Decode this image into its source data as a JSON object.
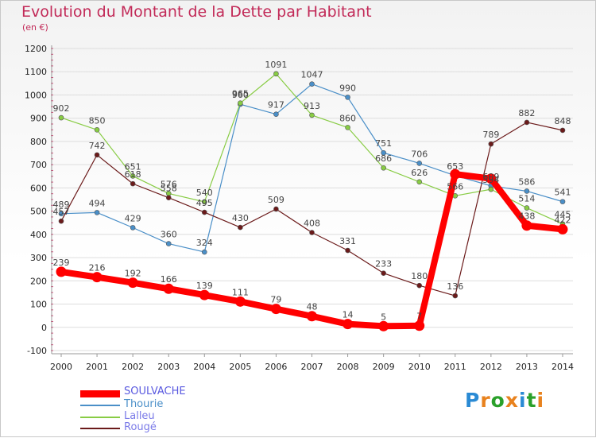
{
  "title": "Evolution du Montant de la Dette par Habitant",
  "unit": "(en €)",
  "logo_text": "Proxiti",
  "chart_data": {
    "type": "line",
    "title": "Evolution du Montant de la Dette par Habitant",
    "ylabel": "(en €)",
    "xlabel": "",
    "x": [
      "2000",
      "2001",
      "2002",
      "2003",
      "2004",
      "2005",
      "2006",
      "2007",
      "2008",
      "2009",
      "2010",
      "2011",
      "2012",
      "2013",
      "2014"
    ],
    "ylim": [
      -100,
      1200
    ],
    "yticks": [
      "-100",
      "0",
      "100",
      "200",
      "300",
      "400",
      "500",
      "600",
      "700",
      "800",
      "900",
      "1000",
      "1100",
      "1200"
    ],
    "grid": "horizontal",
    "legend": "bottom-left",
    "series": [
      {
        "name": "SOULVACHE",
        "color": "#ff0000",
        "values": [
          239,
          216,
          192,
          166,
          139,
          111,
          79,
          48,
          14,
          5,
          7,
          659,
          640,
          438,
          422
        ],
        "labels": [
          "239",
          "216",
          "192",
          "166",
          "139",
          "111",
          "79",
          "48",
          "14",
          "5",
          "7",
          "",
          "",
          "438",
          "422"
        ]
      },
      {
        "name": "Thourie",
        "color": "#4a8fc8",
        "values": [
          489,
          494,
          429,
          360,
          324,
          960,
          917,
          1047,
          990,
          751,
          706,
          653,
          609,
          586,
          541
        ],
        "labels": [
          "489",
          "494",
          "429",
          "360",
          "324",
          "960",
          "917",
          "1047",
          "990",
          "751",
          "706",
          "653",
          "609",
          "586",
          "541"
        ]
      },
      {
        "name": "Lalleu",
        "color": "#88cc44",
        "values": [
          902,
          850,
          651,
          576,
          540,
          965,
          1091,
          913,
          860,
          686,
          626,
          566,
          594,
          514,
          445
        ],
        "labels": [
          "902",
          "850",
          "651",
          "576",
          "540",
          "965",
          "1091",
          "913",
          "860",
          "686",
          "626",
          "566",
          "594",
          "514",
          "445"
        ]
      },
      {
        "name": "Rougé",
        "color": "#6b1a1a",
        "values": [
          457,
          742,
          618,
          558,
          495,
          430,
          509,
          408,
          331,
          233,
          180,
          136,
          789,
          882,
          848
        ],
        "labels": [
          "457",
          "742",
          "618",
          "558",
          "495",
          "430",
          "509",
          "408",
          "331",
          "233",
          "180",
          "136",
          "789",
          "882",
          "848"
        ]
      }
    ]
  }
}
